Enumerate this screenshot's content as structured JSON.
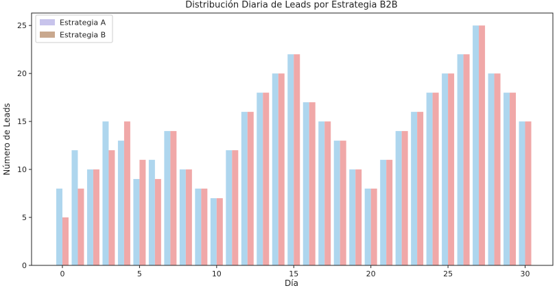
{
  "chart_data": {
    "type": "bar",
    "title": "Distribución Diaria de Leads por Estrategia B2B",
    "xlabel": "Día",
    "ylabel": "Número de Leads",
    "x": [
      0,
      1,
      2,
      3,
      4,
      5,
      6,
      7,
      8,
      9,
      10,
      11,
      12,
      13,
      14,
      15,
      16,
      17,
      18,
      19,
      20,
      21,
      22,
      23,
      24,
      25,
      26,
      27,
      28,
      29,
      30
    ],
    "xticks": [
      0,
      5,
      10,
      15,
      20,
      25,
      30
    ],
    "yticks": [
      0,
      5,
      10,
      15,
      20,
      25
    ],
    "xlim": [
      -2,
      31.8
    ],
    "ylim": [
      0,
      26.3
    ],
    "grid": false,
    "legend_position": "top-left",
    "series": [
      {
        "name": "Estrategia A",
        "values": [
          8,
          12,
          10,
          15,
          13,
          9,
          11,
          14,
          10,
          8,
          7,
          12,
          16,
          18,
          20,
          22,
          17,
          15,
          13,
          10,
          8,
          11,
          14,
          16,
          18,
          20,
          22,
          25,
          20,
          18,
          15
        ],
        "bar_color": "#aed6ee",
        "legend_color": "#c8c4ec"
      },
      {
        "name": "Estrategia B",
        "values": [
          5,
          8,
          10,
          12,
          15,
          11,
          9,
          14,
          10,
          8,
          7,
          12,
          16,
          18,
          20,
          22,
          17,
          15,
          13,
          10,
          8,
          11,
          14,
          16,
          18,
          20,
          22,
          25,
          20,
          18,
          15
        ],
        "bar_color": "#f0a8a8",
        "legend_color": "#c9a88e"
      }
    ]
  }
}
